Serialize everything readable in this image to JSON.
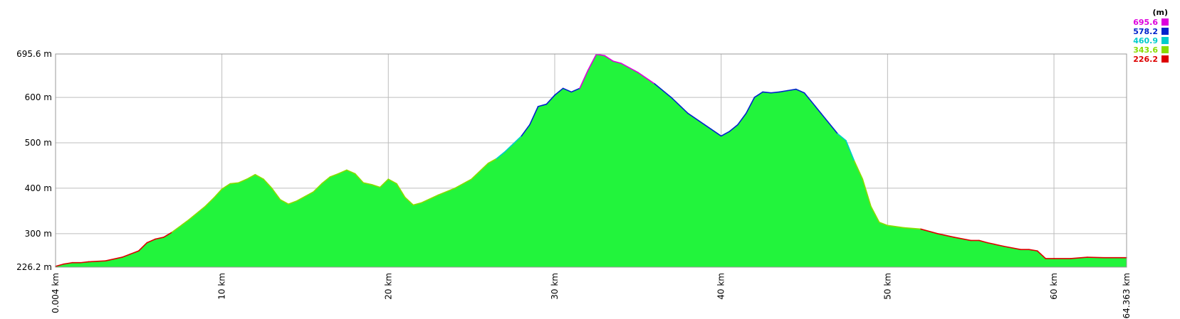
{
  "chart_data": {
    "type": "area",
    "title": "",
    "xlabel": "",
    "ylabel": "",
    "xlim": [
      0.004,
      64.363
    ],
    "ylim": [
      226.2,
      695.6
    ],
    "y_ticks": [
      {
        "value": 695.6,
        "label": "695.6 m"
      },
      {
        "value": 600,
        "label": "600 m"
      },
      {
        "value": 500,
        "label": "500 m"
      },
      {
        "value": 400,
        "label": "400 m"
      },
      {
        "value": 300,
        "label": "300 m"
      },
      {
        "value": 226.2,
        "label": "226.2 m"
      }
    ],
    "x_ticks": [
      {
        "value": 0.004,
        "label": "0.004 km"
      },
      {
        "value": 10,
        "label": "10 km"
      },
      {
        "value": 20,
        "label": "20 km"
      },
      {
        "value": 30,
        "label": "30 km"
      },
      {
        "value": 40,
        "label": "40 km"
      },
      {
        "value": 50,
        "label": "50 km"
      },
      {
        "value": 60,
        "label": "60 km"
      },
      {
        "value": 64.363,
        "label": "64.363 km"
      }
    ],
    "grid": true,
    "fill_color": "#22f43c",
    "legend": {
      "position": "top-right",
      "unit": "(m)",
      "entries": [
        {
          "label": "695.6",
          "color": "#dd00dd"
        },
        {
          "label": "578.2",
          "color": "#0022cc"
        },
        {
          "label": "460.9",
          "color": "#00cccc"
        },
        {
          "label": "343.6",
          "color": "#88dd00"
        },
        {
          "label": "226.2",
          "color": "#dd0000"
        }
      ]
    },
    "series": [
      {
        "x": [
          0.004,
          0.5,
          1,
          1.5,
          2,
          3,
          4,
          4.5,
          5,
          5.5,
          6,
          6.5,
          7,
          8,
          9,
          9.5,
          10,
          10.5,
          11,
          11.5,
          12,
          12.5,
          13,
          13.5,
          14,
          14.5,
          15,
          15.5,
          16,
          16.5,
          17,
          17.5,
          18,
          18.5,
          19,
          19.5,
          20,
          20.5,
          21,
          21.5,
          22,
          23,
          24,
          25,
          26,
          26.5,
          27,
          28,
          28.5,
          29,
          29.5,
          30,
          30.5,
          31,
          31.5,
          32,
          32.5,
          33,
          33.5,
          34,
          35,
          36,
          37,
          38,
          39,
          40,
          40.5,
          41,
          41.5,
          42,
          42.5,
          43,
          43.5,
          44,
          44.5,
          45,
          46,
          47,
          47.5,
          48,
          48.5,
          49,
          49.5,
          50,
          51,
          52,
          53,
          54,
          55,
          55.5,
          56,
          57,
          58,
          58.5,
          59,
          59.5,
          60,
          61,
          62,
          63,
          64.363
        ],
        "y": [
          228,
          233,
          236,
          236,
          238,
          240,
          248,
          255,
          262,
          280,
          288,
          292,
          303,
          330,
          360,
          378,
          398,
          410,
          412,
          420,
          430,
          420,
          400,
          375,
          365,
          372,
          382,
          392,
          410,
          425,
          432,
          440,
          432,
          412,
          408,
          402,
          420,
          410,
          380,
          363,
          368,
          385,
          400,
          420,
          455,
          465,
          480,
          515,
          540,
          580,
          585,
          605,
          620,
          612,
          620,
          660,
          695,
          692,
          680,
          675,
          655,
          630,
          600,
          565,
          540,
          515,
          525,
          540,
          565,
          600,
          612,
          610,
          612,
          615,
          618,
          610,
          565,
          520,
          505,
          460,
          420,
          360,
          325,
          318,
          313,
          310,
          300,
          292,
          285,
          285,
          280,
          272,
          265,
          265,
          262,
          245,
          245,
          245,
          248,
          247,
          247
        ]
      }
    ]
  }
}
